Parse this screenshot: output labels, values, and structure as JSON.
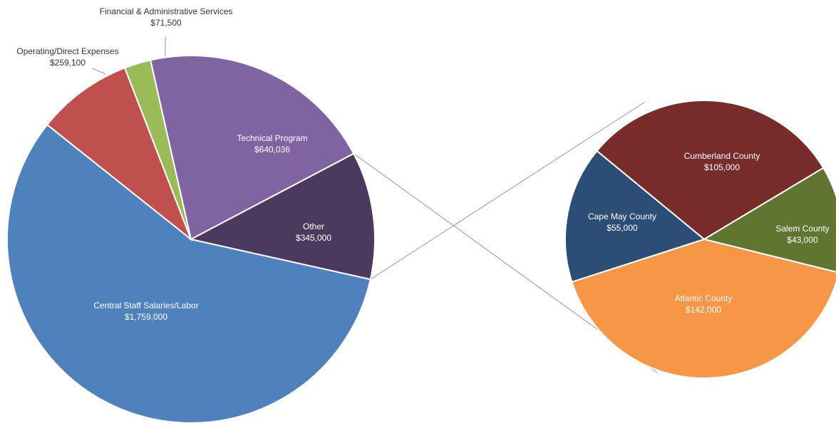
{
  "chart_data": [
    {
      "type": "pie",
      "series": [
        {
          "slices": [
            {
              "label": "Central Staff Salaries/Labor",
              "value_text": "$1,759,000",
              "value": 1759000,
              "color": "#4F81BD",
              "label_position": "inside"
            },
            {
              "label": "Operating/Direct Expenses",
              "value_text": "$259,100",
              "value": 259100,
              "color": "#C0504D",
              "label_position": "outside"
            },
            {
              "label": "Financial & Administrative Services",
              "value_text": "$71,500",
              "value": 71500,
              "color": "#9BBB59",
              "label_position": "outside"
            },
            {
              "label": "Technical Program",
              "value_text": "$640,036",
              "value": 640036,
              "color": "#8064A2",
              "label_position": "inside"
            },
            {
              "label": "Other",
              "value_text": "$345,000",
              "value": 345000,
              "color": "#4B3A5E",
              "label_position": "inside"
            }
          ]
        }
      ]
    },
    {
      "type": "pie",
      "series": [
        {
          "slices": [
            {
              "label": "Cumberland County",
              "value_text": "$105,000",
              "value": 105000,
              "color": "#772C2A"
            },
            {
              "label": "Salem County",
              "value_text": "$43,000",
              "value": 43000,
              "color": "#5F7530"
            },
            {
              "label": "Atlantic County",
              "value_text": "$142,000",
              "value": 142000,
              "color": "#F79646"
            },
            {
              "label": "Cape May County",
              "value_text": "$55,000",
              "value": 55000,
              "color": "#2C4D75"
            }
          ]
        }
      ]
    }
  ]
}
